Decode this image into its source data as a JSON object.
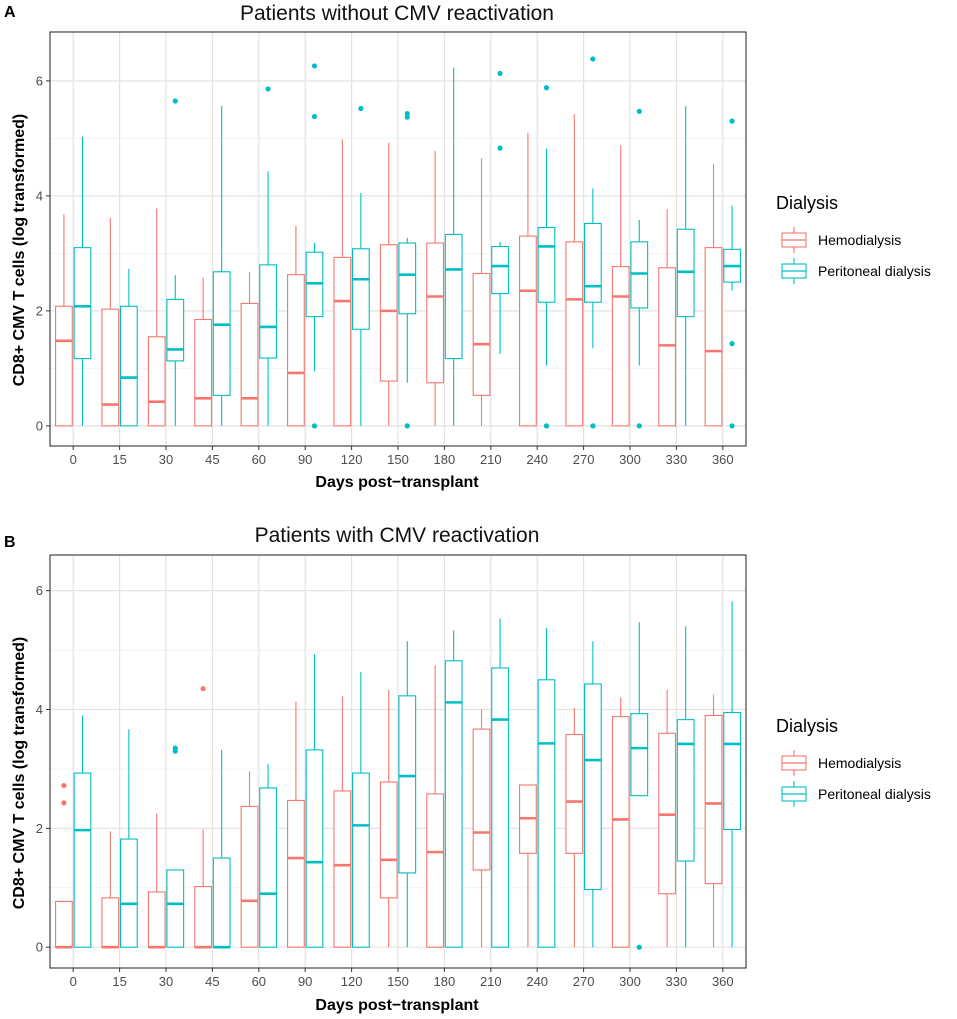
{
  "legend": {
    "title": "Dialysis",
    "items": [
      {
        "label": "Hemodialysis",
        "color": "#F8766D"
      },
      {
        "label": "Peritoneal dialysis",
        "color": "#00BFC4"
      }
    ]
  },
  "chart_data": [
    {
      "panel_label": "A",
      "type": "boxplot",
      "title": "Patients without CMV reactivation",
      "xlabel": "Days post−transplant",
      "ylabel": "CD8+ CMV T cells (log transformed)",
      "categories": [
        "0",
        "15",
        "30",
        "45",
        "60",
        "90",
        "120",
        "150",
        "180",
        "210",
        "240",
        "270",
        "300",
        "330",
        "360"
      ],
      "ylim": [
        -0.35,
        6.85
      ],
      "yticks": [
        0,
        2,
        4,
        6
      ],
      "series": [
        {
          "name": "Hemodialysis",
          "color": "#F8766D",
          "boxes": [
            {
              "min": 0,
              "q1": 0,
              "median": 1.48,
              "q3": 2.08,
              "max": 3.68,
              "outliers": []
            },
            {
              "min": 0,
              "q1": 0,
              "median": 0.37,
              "q3": 2.03,
              "max": 3.62,
              "outliers": []
            },
            {
              "min": 0,
              "q1": 0,
              "median": 0.42,
              "q3": 1.55,
              "max": 3.78,
              "outliers": []
            },
            {
              "min": 0,
              "q1": 0,
              "median": 0.48,
              "q3": 1.85,
              "max": 2.58,
              "outliers": []
            },
            {
              "min": 0,
              "q1": 0,
              "median": 0.48,
              "q3": 2.13,
              "max": 2.68,
              "outliers": []
            },
            {
              "min": 0,
              "q1": 0,
              "median": 0.92,
              "q3": 2.63,
              "max": 3.48,
              "outliers": []
            },
            {
              "min": 0,
              "q1": 0,
              "median": 2.17,
              "q3": 2.93,
              "max": 4.98,
              "outliers": []
            },
            {
              "min": 0,
              "q1": 0.78,
              "median": 2.0,
              "q3": 3.15,
              "max": 4.92,
              "outliers": []
            },
            {
              "min": 0,
              "q1": 0.75,
              "median": 2.25,
              "q3": 3.18,
              "max": 4.78,
              "outliers": []
            },
            {
              "min": 0,
              "q1": 0.53,
              "median": 1.42,
              "q3": 2.65,
              "max": 4.65,
              "outliers": []
            },
            {
              "min": 0,
              "q1": 0,
              "median": 2.35,
              "q3": 3.3,
              "max": 5.1,
              "outliers": []
            },
            {
              "min": 0,
              "q1": 0,
              "median": 2.2,
              "q3": 3.2,
              "max": 5.42,
              "outliers": []
            },
            {
              "min": 0,
              "q1": 0,
              "median": 2.25,
              "q3": 2.77,
              "max": 4.88,
              "outliers": []
            },
            {
              "min": 0,
              "q1": 0,
              "median": 1.4,
              "q3": 2.75,
              "max": 3.77,
              "outliers": []
            },
            {
              "min": 0,
              "q1": 0,
              "median": 1.3,
              "q3": 3.1,
              "max": 4.55,
              "outliers": []
            }
          ]
        },
        {
          "name": "Peritoneal dialysis",
          "color": "#00BFC4",
          "boxes": [
            {
              "min": 0,
              "q1": 1.17,
              "median": 2.08,
              "q3": 3.1,
              "max": 5.03,
              "outliers": []
            },
            {
              "min": 0,
              "q1": 0,
              "median": 0.84,
              "q3": 2.08,
              "max": 2.73,
              "outliers": []
            },
            {
              "min": 0,
              "q1": 1.13,
              "median": 1.33,
              "q3": 2.2,
              "max": 2.62,
              "outliers": [
                5.65
              ]
            },
            {
              "min": 0,
              "q1": 0.53,
              "median": 1.76,
              "q3": 2.68,
              "max": 5.56,
              "outliers": []
            },
            {
              "min": 0,
              "q1": 1.18,
              "median": 1.72,
              "q3": 2.8,
              "max": 4.43,
              "outliers": [
                5.86
              ]
            },
            {
              "min": 0.95,
              "q1": 1.9,
              "median": 2.48,
              "q3": 3.02,
              "max": 3.18,
              "outliers": [
                6.26,
                5.38,
                0
              ]
            },
            {
              "min": 0,
              "q1": 1.68,
              "median": 2.55,
              "q3": 3.08,
              "max": 4.05,
              "outliers": [
                5.52
              ]
            },
            {
              "min": 0.75,
              "q1": 1.95,
              "median": 2.63,
              "q3": 3.18,
              "max": 3.27,
              "outliers": [
                5.43,
                5.37,
                0
              ]
            },
            {
              "min": 0,
              "q1": 1.17,
              "median": 2.72,
              "q3": 3.33,
              "max": 6.23,
              "outliers": []
            },
            {
              "min": 1.25,
              "q1": 2.3,
              "median": 2.78,
              "q3": 3.12,
              "max": 3.2,
              "outliers": [
                6.13,
                4.83
              ]
            },
            {
              "min": 1.05,
              "q1": 2.15,
              "median": 3.12,
              "q3": 3.45,
              "max": 4.82,
              "outliers": [
                5.88,
                0
              ]
            },
            {
              "min": 1.35,
              "q1": 2.15,
              "median": 2.43,
              "q3": 3.52,
              "max": 4.13,
              "outliers": [
                6.38,
                0
              ]
            },
            {
              "min": 1.05,
              "q1": 2.05,
              "median": 2.65,
              "q3": 3.2,
              "max": 3.58,
              "outliers": [
                5.47,
                0
              ]
            },
            {
              "min": 0,
              "q1": 1.9,
              "median": 2.68,
              "q3": 3.42,
              "max": 5.56,
              "outliers": []
            },
            {
              "min": 2.35,
              "q1": 2.5,
              "median": 2.78,
              "q3": 3.07,
              "max": 3.83,
              "outliers": [
                5.3,
                1.43,
                0
              ]
            }
          ]
        }
      ]
    },
    {
      "panel_label": "B",
      "type": "boxplot",
      "title": "Patients with CMV reactivation",
      "xlabel": "Days post−transplant",
      "ylabel": "CD8+ CMV T cells (log transformed)",
      "categories": [
        "0",
        "15",
        "30",
        "45",
        "60",
        "90",
        "120",
        "150",
        "180",
        "210",
        "240",
        "270",
        "300",
        "330",
        "360"
      ],
      "ylim": [
        -0.35,
        6.6
      ],
      "yticks": [
        0,
        2,
        4,
        6
      ],
      "series": [
        {
          "name": "Hemodialysis",
          "color": "#F8766D",
          "boxes": [
            {
              "min": 0,
              "q1": 0,
              "median": 0,
              "q3": 0.77,
              "max": 0.77,
              "outliers": [
                2.72,
                2.43
              ]
            },
            {
              "min": 0,
              "q1": 0,
              "median": 0,
              "q3": 0.83,
              "max": 1.95,
              "outliers": []
            },
            {
              "min": 0,
              "q1": 0,
              "median": 0,
              "q3": 0.93,
              "max": 2.25,
              "outliers": []
            },
            {
              "min": 0,
              "q1": 0,
              "median": 0,
              "q3": 1.02,
              "max": 1.98,
              "outliers": [
                4.35
              ]
            },
            {
              "min": 0,
              "q1": 0,
              "median": 0.78,
              "q3": 2.37,
              "max": 2.96,
              "outliers": []
            },
            {
              "min": 0,
              "q1": 0,
              "median": 1.5,
              "q3": 2.47,
              "max": 4.13,
              "outliers": []
            },
            {
              "min": 0,
              "q1": 0,
              "median": 1.38,
              "q3": 2.63,
              "max": 4.22,
              "outliers": []
            },
            {
              "min": 0,
              "q1": 0.83,
              "median": 1.47,
              "q3": 2.78,
              "max": 4.33,
              "outliers": []
            },
            {
              "min": 0,
              "q1": 0,
              "median": 1.6,
              "q3": 2.58,
              "max": 4.74,
              "outliers": []
            },
            {
              "min": 0,
              "q1": 1.3,
              "median": 1.93,
              "q3": 3.67,
              "max": 4.0,
              "outliers": []
            },
            {
              "min": 0,
              "q1": 1.58,
              "median": 2.17,
              "q3": 2.73,
              "max": 2.73,
              "outliers": []
            },
            {
              "min": 0,
              "q1": 1.58,
              "median": 2.45,
              "q3": 3.58,
              "max": 4.03,
              "outliers": []
            },
            {
              "min": 0,
              "q1": 0,
              "median": 2.15,
              "q3": 3.88,
              "max": 4.2,
              "outliers": []
            },
            {
              "min": 0,
              "q1": 0.9,
              "median": 2.23,
              "q3": 3.6,
              "max": 4.33,
              "outliers": []
            },
            {
              "min": 0,
              "q1": 1.07,
              "median": 2.42,
              "q3": 3.9,
              "max": 4.25,
              "outliers": []
            }
          ]
        },
        {
          "name": "Peritoneal dialysis",
          "color": "#00BFC4",
          "boxes": [
            {
              "min": 0,
              "q1": 0,
              "median": 1.97,
              "q3": 2.93,
              "max": 3.9,
              "outliers": []
            },
            {
              "min": 0,
              "q1": 0,
              "median": 0.73,
              "q3": 1.82,
              "max": 3.67,
              "outliers": []
            },
            {
              "min": 0,
              "q1": 0,
              "median": 0.73,
              "q3": 1.3,
              "max": 1.3,
              "outliers": [
                3.35,
                3.3
              ]
            },
            {
              "min": 0,
              "q1": 0,
              "median": 0,
              "q3": 1.5,
              "max": 3.32,
              "outliers": []
            },
            {
              "min": 0,
              "q1": 0,
              "median": 0.9,
              "q3": 2.68,
              "max": 3.08,
              "outliers": []
            },
            {
              "min": 0,
              "q1": 0,
              "median": 1.43,
              "q3": 3.32,
              "max": 4.93,
              "outliers": []
            },
            {
              "min": 0,
              "q1": 0,
              "median": 2.05,
              "q3": 2.93,
              "max": 4.63,
              "outliers": []
            },
            {
              "min": 0,
              "q1": 1.25,
              "median": 2.88,
              "q3": 4.23,
              "max": 5.15,
              "outliers": []
            },
            {
              "min": 0,
              "q1": 0,
              "median": 4.12,
              "q3": 4.82,
              "max": 5.33,
              "outliers": []
            },
            {
              "min": 0,
              "q1": 0,
              "median": 3.83,
              "q3": 4.7,
              "max": 5.53,
              "outliers": []
            },
            {
              "min": 0,
              "q1": 0,
              "median": 3.43,
              "q3": 4.5,
              "max": 5.37,
              "outliers": []
            },
            {
              "min": 0,
              "q1": 0.97,
              "median": 3.15,
              "q3": 4.43,
              "max": 5.15,
              "outliers": []
            },
            {
              "min": 2.55,
              "q1": 2.55,
              "median": 3.35,
              "q3": 3.93,
              "max": 5.47,
              "outliers": [
                0
              ]
            },
            {
              "min": 0,
              "q1": 1.45,
              "median": 3.42,
              "q3": 3.83,
              "max": 5.4,
              "outliers": []
            },
            {
              "min": 0,
              "q1": 1.98,
              "median": 3.42,
              "q3": 3.95,
              "max": 5.82,
              "outliers": []
            }
          ]
        }
      ]
    }
  ]
}
